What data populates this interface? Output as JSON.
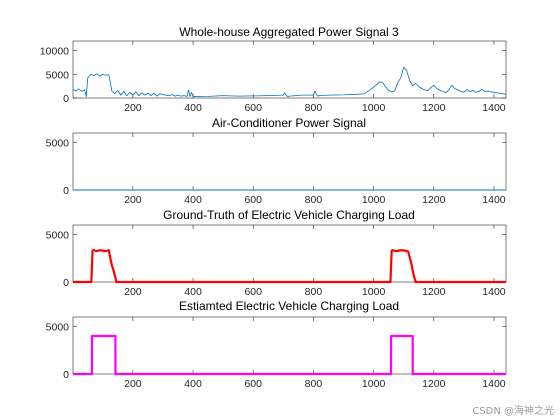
{
  "colors": {
    "blue": "#0072BD",
    "red": "#FF0000",
    "magenta": "#FF00FF",
    "axis": "#262626"
  },
  "watermark": "CSDN @海神之光",
  "chart_data": [
    {
      "type": "line",
      "title": "Whole-house Aggregated Power Signal 3",
      "xlabel": "",
      "ylabel": "",
      "xlim": [
        1,
        1440
      ],
      "ylim": [
        0,
        12000
      ],
      "xticks": [
        200,
        400,
        600,
        800,
        1000,
        1200,
        1400
      ],
      "yticks": [
        0,
        5000,
        10000
      ],
      "grid": false,
      "series": [
        {
          "color": "#0072BD",
          "line_width": 0.8,
          "x": [
            1,
            10,
            20,
            30,
            40,
            45,
            50,
            60,
            70,
            80,
            90,
            100,
            110,
            120,
            130,
            140,
            150,
            160,
            170,
            180,
            190,
            200,
            210,
            220,
            230,
            240,
            250,
            260,
            270,
            280,
            290,
            300,
            310,
            320,
            330,
            340,
            350,
            360,
            370,
            380,
            385,
            390,
            395,
            400,
            450,
            500,
            550,
            600,
            650,
            700,
            705,
            710,
            715,
            720,
            760,
            800,
            805,
            810,
            815,
            820,
            850,
            900,
            950,
            970,
            990,
            1000,
            1010,
            1020,
            1030,
            1040,
            1050,
            1060,
            1070,
            1080,
            1090,
            1100,
            1110,
            1120,
            1130,
            1140,
            1150,
            1160,
            1170,
            1180,
            1190,
            1200,
            1210,
            1220,
            1230,
            1240,
            1250,
            1260,
            1270,
            1280,
            1290,
            1300,
            1310,
            1320,
            1330,
            1340,
            1350,
            1360,
            1370,
            1380,
            1390,
            1400,
            1410,
            1420,
            1440
          ],
          "y": [
            1800,
            1500,
            1900,
            1400,
            1700,
            300,
            4200,
            5000,
            4700,
            5100,
            4600,
            5000,
            4800,
            4900,
            1500,
            900,
            1600,
            600,
            1400,
            500,
            1200,
            600,
            1300,
            500,
            1100,
            600,
            1000,
            500,
            1000,
            400,
            900,
            700,
            600,
            500,
            700,
            400,
            600,
            400,
            500,
            350,
            1700,
            300,
            1200,
            300,
            350,
            500,
            400,
            450,
            500,
            600,
            1100,
            500,
            300,
            400,
            600,
            600,
            1500,
            700,
            400,
            500,
            600,
            650,
            800,
            900,
            1800,
            2300,
            2800,
            3400,
            3200,
            2400,
            1600,
            1300,
            1500,
            3200,
            4200,
            6500,
            5800,
            3600,
            2600,
            3100,
            2400,
            2000,
            1700,
            1500,
            2200,
            2700,
            2000,
            1600,
            1400,
            1100,
            1700,
            2700,
            2000,
            1700,
            1400,
            1200,
            1800,
            1300,
            1600,
            1200,
            1400,
            1800,
            1300,
            1500,
            1300,
            1200,
            1100,
            1000,
            800
          ]
        }
      ]
    },
    {
      "type": "line",
      "title": "Air-Conditioner Power Signal",
      "xlabel": "",
      "ylabel": "",
      "xlim": [
        1,
        1440
      ],
      "ylim": [
        0,
        6000
      ],
      "xticks": [
        200,
        400,
        600,
        800,
        1000,
        1200,
        1400
      ],
      "yticks": [
        0,
        5000
      ],
      "grid": false,
      "series": [
        {
          "color": "#0072BD",
          "line_width": 1,
          "x": [
            1,
            1440
          ],
          "y": [
            0,
            0
          ]
        }
      ]
    },
    {
      "type": "line",
      "title": "Ground-Truth of Electric Vehicle Charging Load",
      "xlabel": "",
      "ylabel": "",
      "xlim": [
        1,
        1440
      ],
      "ylim": [
        0,
        6000
      ],
      "xticks": [
        200,
        400,
        600,
        800,
        1000,
        1200,
        1400
      ],
      "yticks": [
        0,
        5000
      ],
      "grid": false,
      "series": [
        {
          "color": "#FF0000",
          "line_width": 2.2,
          "x": [
            1,
            62,
            66,
            70,
            80,
            90,
            100,
            110,
            120,
            125,
            130,
            135,
            140,
            145,
            150,
            1056,
            1060,
            1064,
            1075,
            1090,
            1105,
            1115,
            1120,
            1125,
            1130,
            1135,
            1140,
            1440
          ],
          "y": [
            0,
            0,
            3300,
            3350,
            3250,
            3350,
            3300,
            3250,
            3350,
            2500,
            1800,
            1300,
            700,
            0,
            0,
            0,
            3300,
            3350,
            3250,
            3350,
            3300,
            3200,
            2600,
            2000,
            1200,
            500,
            0,
            0
          ]
        }
      ]
    },
    {
      "type": "line",
      "title": "Estiamted Electric Vehicle Charging Load",
      "xlabel": "",
      "ylabel": "",
      "xlim": [
        1,
        1440
      ],
      "ylim": [
        0,
        6000
      ],
      "xticks": [
        200,
        400,
        600,
        800,
        1000,
        1200,
        1400
      ],
      "yticks": [
        0,
        5000
      ],
      "grid": false,
      "series": [
        {
          "color": "#FF00FF",
          "line_width": 2.2,
          "x": [
            1,
            64,
            64,
            142,
            142,
            1058,
            1058,
            1130,
            1130,
            1440
          ],
          "y": [
            0,
            0,
            4000,
            4000,
            0,
            0,
            4000,
            4000,
            0,
            0
          ]
        }
      ]
    }
  ]
}
